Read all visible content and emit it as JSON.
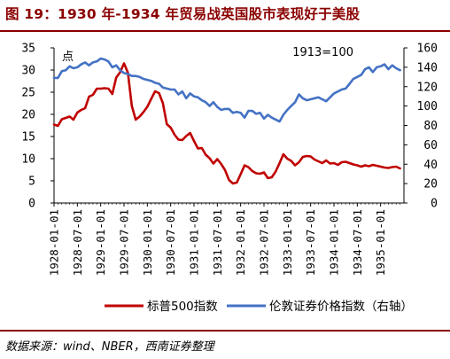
{
  "header": {
    "title": "图 19：1930 年-1934 年贸易战英国股市表现好于美股"
  },
  "source": "数据来源：wind、NBER，西南证券整理",
  "chart_data": {
    "type": "line",
    "title": "图 19：1930 年-1934 年贸易战英国股市表现好于美股",
    "left_axis_label": "点",
    "right_axis_note": "1913=100",
    "left_ylim": [
      0,
      35
    ],
    "left_ticks": [
      "0",
      "5",
      "10",
      "15",
      "20",
      "25",
      "30",
      "35"
    ],
    "right_ylim": [
      0,
      160
    ],
    "right_ticks": [
      "0",
      "20",
      "40",
      "60",
      "80",
      "100",
      "120",
      "140",
      "160"
    ],
    "x_ticks": [
      "1928-01-01",
      "1928-07-01",
      "1929-01-01",
      "1929-07-01",
      "1930-01-01",
      "1930-07-01",
      "1931-01-01",
      "1931-07-01",
      "1932-01-01",
      "1932-07-01",
      "1933-01-01",
      "1933-07-01",
      "1934-01-01",
      "1934-07-01",
      "1935-01-01"
    ],
    "x_range_months": [
      0,
      90
    ],
    "grid": false,
    "legend_position": "bottom",
    "colors": {
      "sp500": "#c00000",
      "ftse": "#4472c4"
    },
    "series": [
      {
        "name": "标普500指数",
        "axis": "left",
        "x": [
          0,
          1,
          2,
          3,
          4,
          5,
          6,
          7,
          8,
          9,
          10,
          11,
          12,
          13,
          14,
          15,
          16,
          17,
          18,
          19,
          20,
          21,
          22,
          23,
          24,
          25,
          26,
          27,
          28,
          29,
          30,
          31,
          32,
          33,
          34,
          35,
          36,
          37,
          38,
          39,
          40,
          41,
          42,
          43,
          44,
          45,
          46,
          47,
          48,
          49,
          50,
          51,
          52,
          53,
          54,
          55,
          56,
          57,
          58,
          59,
          60,
          61,
          62,
          63,
          64,
          65,
          66,
          67,
          68,
          69,
          70,
          71,
          72,
          73,
          74,
          75,
          76,
          77,
          78,
          79,
          80,
          81,
          82,
          83,
          84,
          85,
          86,
          87,
          88,
          89
        ],
        "values": [
          17.7,
          17.4,
          18.9,
          19.2,
          19.5,
          18.8,
          20.4,
          21.0,
          21.4,
          24.0,
          24.4,
          25.8,
          25.8,
          25.9,
          25.8,
          24.6,
          28.3,
          29.5,
          31.5,
          29.4,
          21.9,
          18.8,
          19.5,
          20.5,
          21.7,
          23.5,
          25.2,
          24.8,
          22.5,
          17.8,
          17.0,
          15.4,
          14.3,
          14.2,
          15.1,
          15.8,
          14.0,
          12.3,
          12.4,
          10.9,
          10.1,
          8.9,
          9.9,
          8.8,
          7.4,
          5.2,
          4.4,
          4.6,
          6.5,
          8.5,
          8.1,
          7.2,
          6.7,
          6.6,
          6.9,
          5.6,
          5.8,
          7.1,
          9.0,
          11.0,
          10.0,
          9.5,
          8.5,
          9.2,
          10.4,
          10.6,
          10.5,
          9.8,
          9.4,
          9.0,
          9.6,
          8.9,
          9.0,
          8.6,
          9.2,
          9.3,
          9.0,
          8.7,
          8.5,
          8.2,
          8.5,
          8.3,
          8.6,
          8.4,
          8.2,
          8.0,
          7.9,
          8.1,
          8.2,
          7.8
        ]
      },
      {
        "name": "伦敦证券价格指数（右轴）",
        "axis": "right",
        "x": [
          0,
          1,
          2,
          3,
          4,
          5,
          6,
          7,
          8,
          9,
          10,
          11,
          12,
          13,
          14,
          15,
          16,
          17,
          18,
          19,
          20,
          21,
          22,
          23,
          24,
          25,
          26,
          27,
          28,
          29,
          30,
          31,
          32,
          33,
          34,
          35,
          36,
          37,
          38,
          39,
          40,
          41,
          42,
          43,
          44,
          45,
          46,
          47,
          48,
          49,
          50,
          51,
          52,
          53,
          54,
          55,
          56,
          57,
          58,
          59,
          60,
          61,
          62,
          63,
          64,
          65,
          66,
          67,
          68,
          69,
          70,
          71,
          72,
          73,
          74,
          75,
          76,
          77,
          78,
          79,
          80,
          81,
          82,
          83,
          84,
          85,
          86,
          87,
          88,
          89
        ],
        "values": [
          129,
          129,
          136,
          137,
          141,
          139,
          140,
          143,
          145,
          142,
          145,
          146,
          149,
          148,
          146,
          140,
          142,
          137,
          134,
          133,
          131,
          131,
          130,
          128,
          127,
          126,
          124,
          123,
          119,
          118,
          117,
          117,
          112,
          115,
          108,
          113,
          110,
          109,
          106,
          104,
          100,
          104,
          99,
          96,
          97,
          97,
          93,
          94,
          93,
          88,
          95,
          95,
          92,
          93,
          87,
          91,
          88,
          86,
          84,
          91,
          96,
          100,
          104,
          112,
          108,
          106,
          107,
          108,
          109,
          107,
          105,
          109,
          113,
          115,
          117,
          118,
          123,
          128,
          130,
          132,
          138,
          140,
          135,
          140,
          141,
          143,
          138,
          142,
          139,
          137
        ]
      }
    ]
  },
  "legend": {
    "sp500": "标普500指数",
    "ftse": "伦敦证券价格指数（右轴）"
  }
}
